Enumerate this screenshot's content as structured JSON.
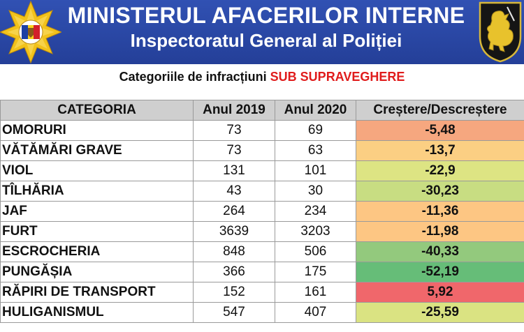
{
  "header": {
    "title": "MINISTERUL AFACERILOR INTERNE",
    "subtitle": "Inspectoratul General al Poliției"
  },
  "caption": {
    "prefix": "Categoriile de infracțiuni ",
    "highlight": "SUB SUPRAVEGHERE",
    "highlight_color": "#e01b1b"
  },
  "table": {
    "headers": [
      "CATEGORIA",
      "Anul 2019",
      "Anul 2020",
      "Creștere/Descreștere"
    ],
    "rows": [
      {
        "category": "OMORURI",
        "y2019": "73",
        "y2020": "69",
        "change": "-5,48",
        "color": "#f6a77f"
      },
      {
        "category": "VĂTĂMĂRI GRAVE",
        "y2019": "73",
        "y2020": "63",
        "change": "-13,7",
        "color": "#fbcf83"
      },
      {
        "category": "VIOL",
        "y2019": "131",
        "y2020": "101",
        "change": "-22,9",
        "color": "#dde483"
      },
      {
        "category": "TÎLHĂRIA",
        "y2019": "43",
        "y2020": "30",
        "change": "-30,23",
        "color": "#c8dd82"
      },
      {
        "category": "JAF",
        "y2019": "264",
        "y2020": "234",
        "change": "-11,36",
        "color": "#fdc683"
      },
      {
        "category": "FURT",
        "y2019": "3639",
        "y2020": "3203",
        "change": "-11,98",
        "color": "#fdc683"
      },
      {
        "category": "ESCROCHERIA",
        "y2019": "848",
        "y2020": "506",
        "change": "-40,33",
        "color": "#93c97d"
      },
      {
        "category": "PUNGĂȘIA",
        "y2019": "366",
        "y2020": "175",
        "change": "-52,19",
        "color": "#66bd78"
      },
      {
        "category": "RĂPIRI DE TRANSPORT",
        "y2019": "152",
        "y2020": "161",
        "change": "5,92",
        "color": "#f0676b"
      },
      {
        "category": "HULIGANISMUL",
        "y2019": "547",
        "y2020": "407",
        "change": "-25,59",
        "color": "#dae382"
      }
    ]
  },
  "icons": {
    "left_emblem": "police-star-emblem-icon",
    "right_emblem": "lion-coat-of-arms-icon"
  },
  "colors": {
    "header_bg": "#2a48a6",
    "table_header_bg": "#cfcfcf"
  }
}
